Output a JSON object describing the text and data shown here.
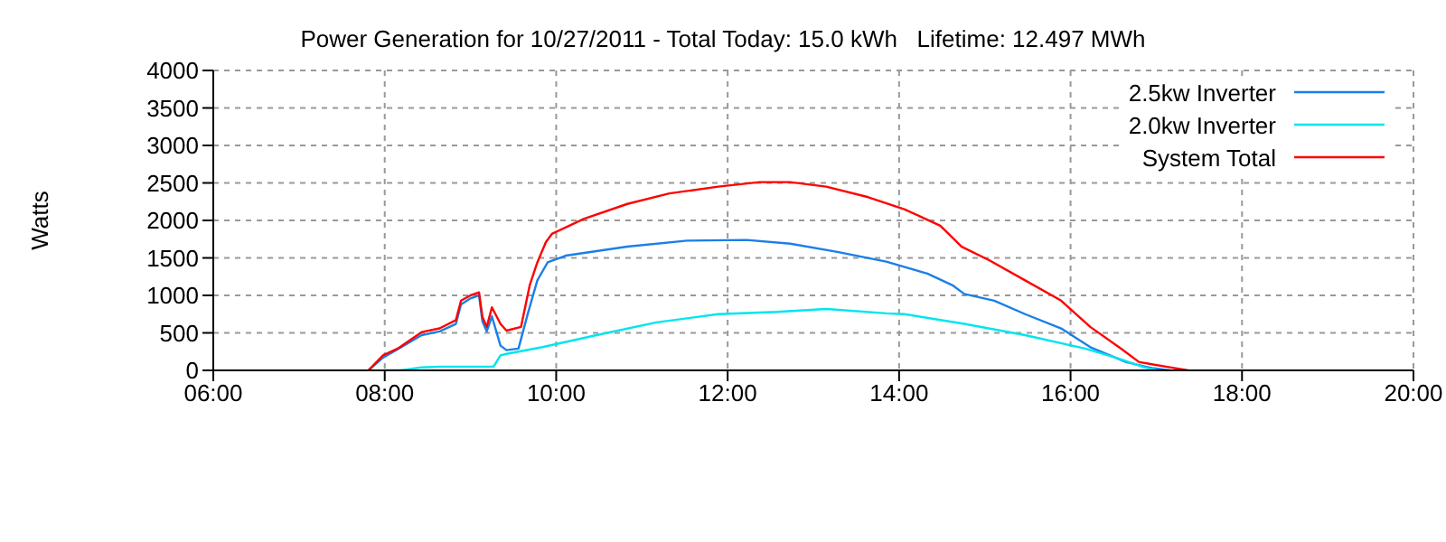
{
  "chart_data": {
    "type": "line",
    "title": "Power Generation for 10/27/2011 - Total Today: 15.0 kWh   Lifetime: 12.497 MWh",
    "ylabel": "Watts",
    "xlim": [
      6,
      20
    ],
    "xticks": [
      {
        "value": 6,
        "label": "06:00"
      },
      {
        "value": 8,
        "label": "08:00"
      },
      {
        "value": 10,
        "label": "10:00"
      },
      {
        "value": 12,
        "label": "12:00"
      },
      {
        "value": 14,
        "label": "14:00"
      },
      {
        "value": 16,
        "label": "16:00"
      },
      {
        "value": 18,
        "label": "18:00"
      },
      {
        "value": 20,
        "label": "20:00"
      }
    ],
    "ylim": [
      0,
      4000
    ],
    "yticks": [
      0,
      500,
      1000,
      1500,
      2000,
      2500,
      3000,
      3500,
      4000
    ],
    "grid": true,
    "legend": "top right",
    "marker": "none",
    "line_style": "solid",
    "series": [
      {
        "name": "2.5kw Inverter",
        "color": "#1a7fe8",
        "x": [
          7.81,
          7.98,
          8.15,
          8.43,
          8.64,
          8.83,
          8.89,
          9.0,
          9.1,
          9.14,
          9.19,
          9.25,
          9.35,
          9.42,
          9.56,
          9.67,
          9.78,
          9.9,
          10.11,
          10.83,
          11.53,
          12.22,
          12.73,
          13.28,
          13.85,
          14.33,
          14.63,
          14.76,
          15.11,
          15.47,
          15.89,
          16.23,
          16.65,
          16.95,
          17.16
        ],
        "values": [
          0,
          170,
          280,
          470,
          520,
          620,
          880,
          960,
          1000,
          650,
          520,
          720,
          330,
          270,
          290,
          760,
          1200,
          1440,
          1530,
          1650,
          1730,
          1740,
          1690,
          1580,
          1450,
          1290,
          1130,
          1020,
          930,
          750,
          560,
          310,
          110,
          30,
          0
        ]
      },
      {
        "name": "2.0kw Inverter",
        "color": "#00e5ee",
        "x": [
          7.98,
          8.19,
          8.43,
          8.64,
          9.27,
          9.35,
          9.42,
          9.84,
          10.47,
          11.17,
          11.89,
          12.58,
          13.15,
          13.85,
          14.06,
          14.76,
          15.47,
          16.17,
          16.55,
          16.86,
          17.01
        ],
        "values": [
          0,
          0,
          40,
          50,
          50,
          200,
          220,
          310,
          470,
          640,
          750,
          780,
          820,
          760,
          750,
          620,
          470,
          290,
          160,
          40,
          0
        ]
      },
      {
        "name": "System Total",
        "color": "#ff0000",
        "x": [
          7.81,
          7.98,
          8.15,
          8.43,
          8.64,
          8.83,
          8.89,
          9.0,
          9.1,
          9.14,
          9.19,
          9.25,
          9.35,
          9.42,
          9.59,
          9.69,
          9.78,
          9.88,
          9.95,
          10.32,
          10.83,
          11.32,
          11.89,
          12.37,
          12.73,
          13.15,
          13.64,
          14.06,
          14.48,
          14.73,
          15.05,
          15.47,
          15.89,
          16.23,
          16.59,
          16.8,
          17.16,
          17.37
        ],
        "values": [
          0,
          200,
          290,
          510,
          560,
          670,
          930,
          1000,
          1040,
          710,
          580,
          840,
          620,
          530,
          580,
          1130,
          1440,
          1710,
          1820,
          2020,
          2220,
          2360,
          2450,
          2510,
          2510,
          2450,
          2310,
          2150,
          1930,
          1650,
          1470,
          1200,
          930,
          580,
          290,
          110,
          40,
          0
        ]
      }
    ]
  }
}
